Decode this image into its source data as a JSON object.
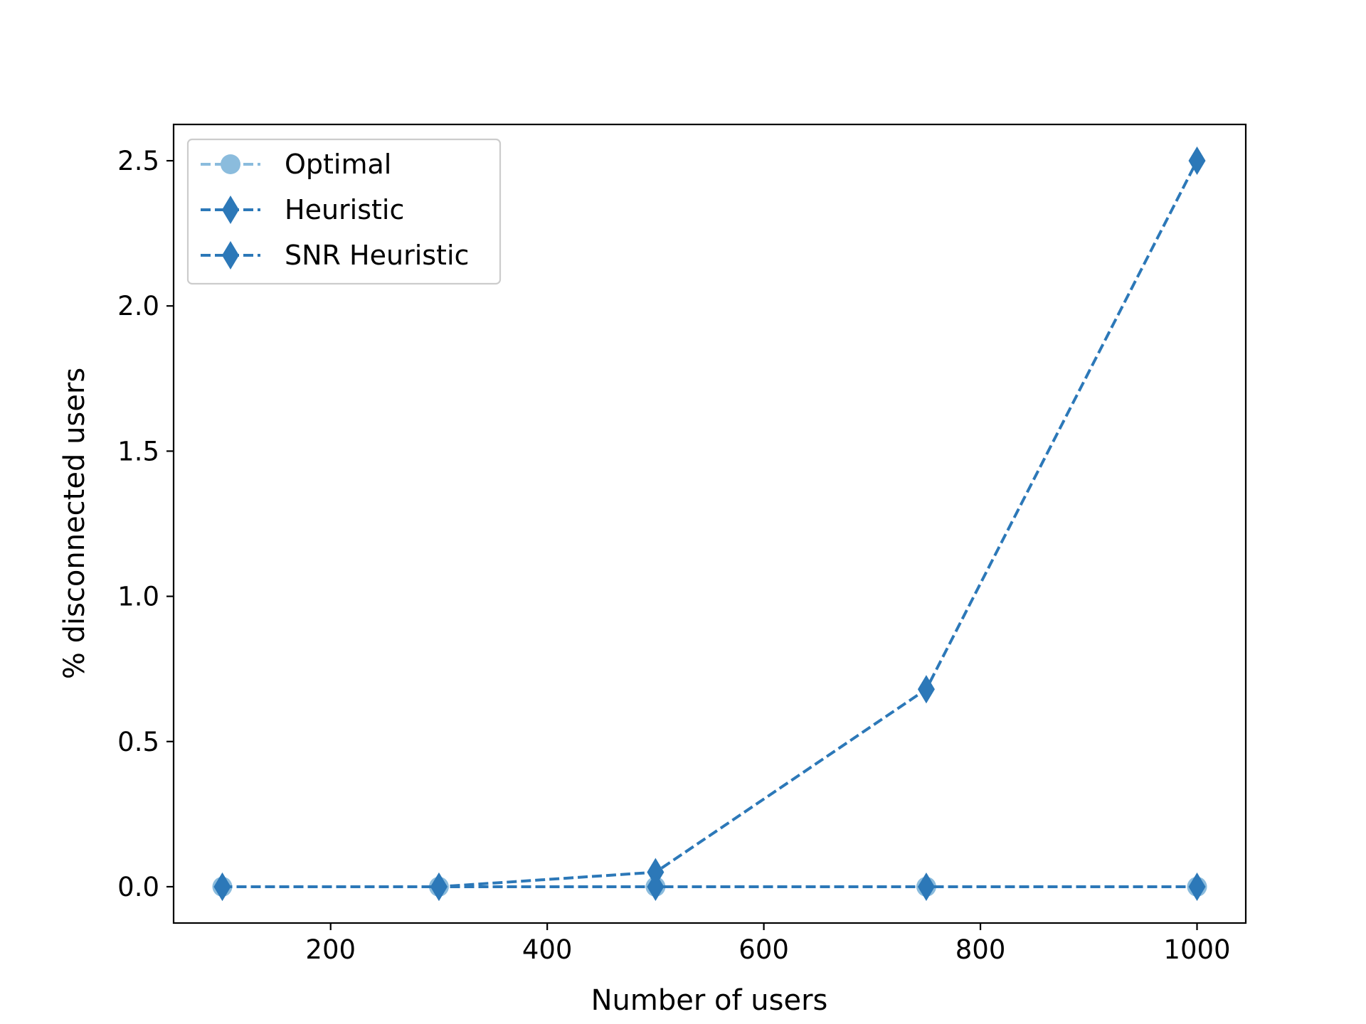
{
  "chart_data": {
    "type": "line",
    "title": "",
    "xlabel": "Number of users",
    "ylabel": "% disconnected users",
    "x": [
      100,
      300,
      500,
      750,
      1000
    ],
    "xticks": [
      200,
      400,
      600,
      800,
      1000
    ],
    "yticks": [
      0.0,
      0.5,
      1.0,
      1.5,
      2.0,
      2.5
    ],
    "xlim": [
      55,
      1045
    ],
    "ylim": [
      -0.125,
      2.625
    ],
    "grid": false,
    "legend": {
      "placement": "top-left"
    },
    "series": [
      {
        "name": "Optimal",
        "values": [
          0,
          0,
          0,
          0,
          0
        ],
        "color": "#8bbcdd",
        "marker": "circle",
        "line_style": "dashed"
      },
      {
        "name": "Heuristic",
        "values": [
          0,
          0,
          0,
          0,
          0
        ],
        "color": "#2c78b8",
        "marker": "diamond",
        "line_style": "dashed"
      },
      {
        "name": "SNR Heuristic",
        "values": [
          0,
          0,
          0.05,
          0.68,
          2.5
        ],
        "color": "#2c78b8",
        "marker": "diamond",
        "line_style": "dashed"
      }
    ]
  }
}
